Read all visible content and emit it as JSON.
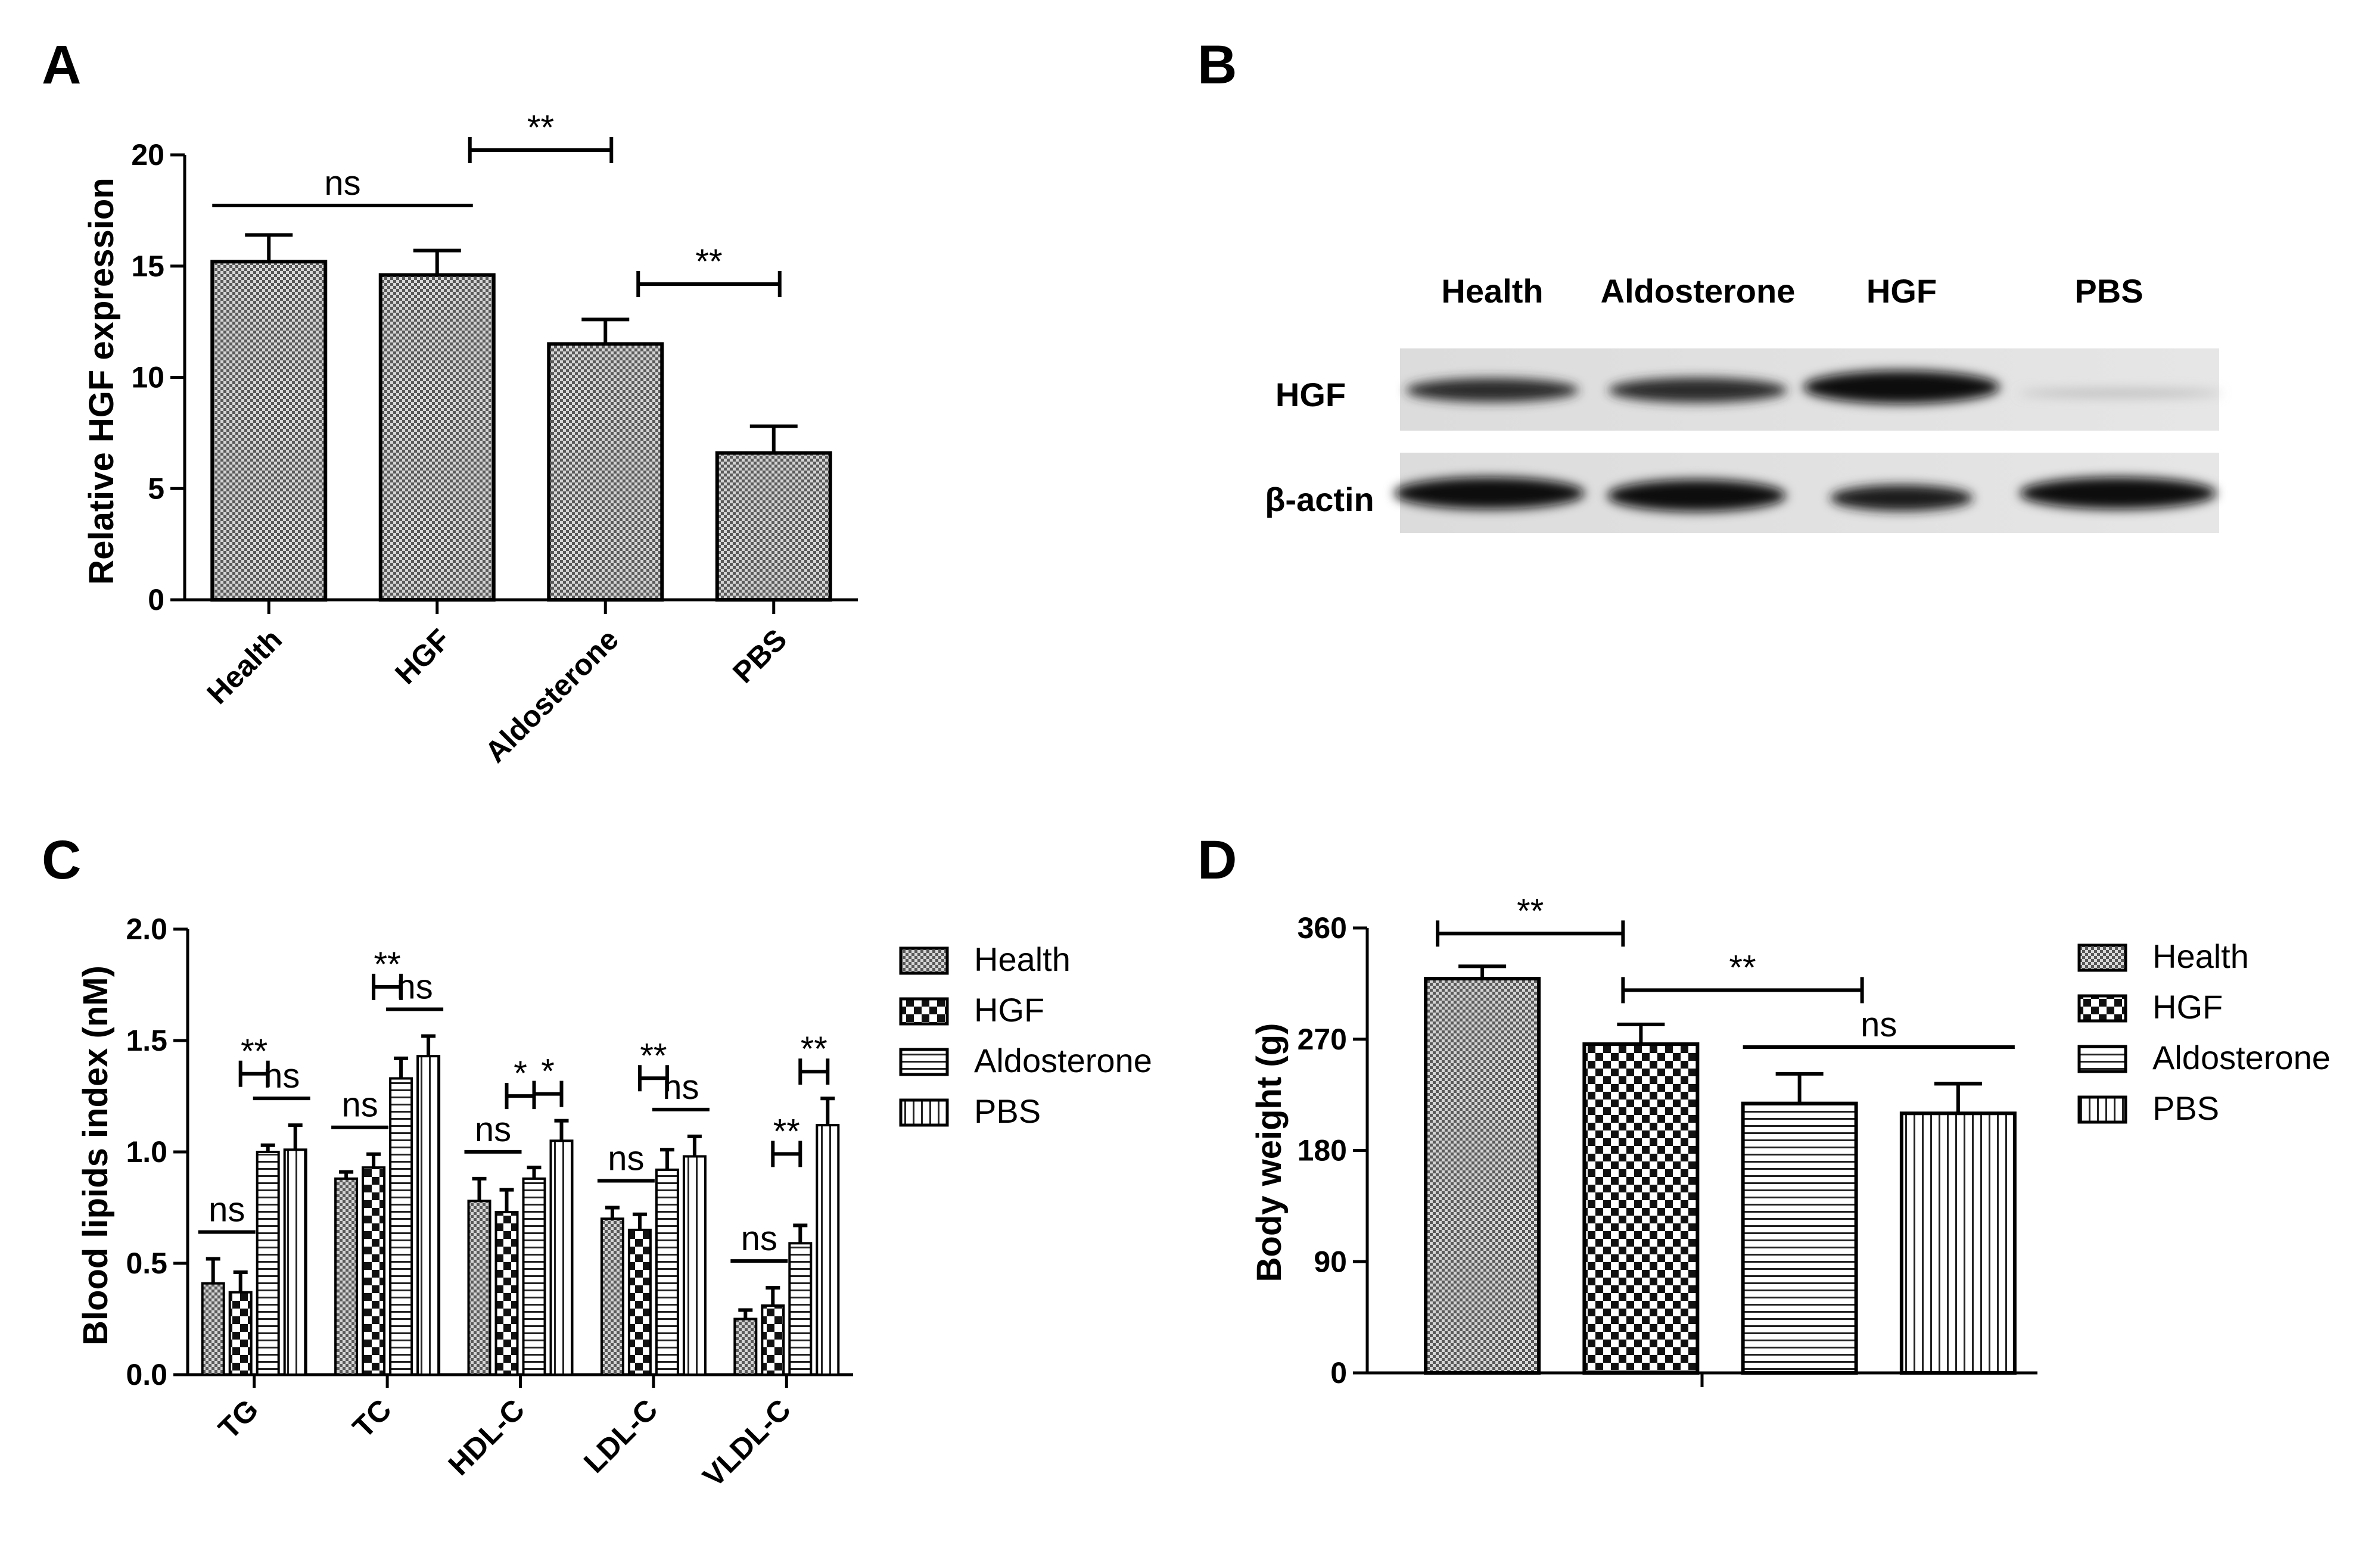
{
  "panels": {
    "A": {
      "letter": "A",
      "chart_data": {
        "type": "bar",
        "ylabel": "Relative HGF expression",
        "xlabel": "",
        "ylim": [
          0,
          20
        ],
        "yticks": [
          "0",
          "5",
          "10",
          "15",
          "20"
        ],
        "categories": [
          "Health",
          "HGF",
          "Aldosterone",
          "PBS"
        ],
        "values": [
          15.2,
          14.6,
          11.5,
          6.6
        ],
        "errors": [
          1.2,
          1.1,
          1.1,
          1.2
        ],
        "significance": [
          {
            "from": 0,
            "to": 1,
            "label": "ns"
          },
          {
            "from": 1,
            "to": 2,
            "label": "**"
          },
          {
            "from": 2,
            "to": 3,
            "label": "**"
          }
        ]
      }
    },
    "B": {
      "letter": "B",
      "lanes": [
        "Health",
        "Aldosterone",
        "HGF",
        "PBS"
      ],
      "rows": [
        "HGF",
        "β-actin"
      ]
    },
    "C": {
      "letter": "C",
      "chart_data": {
        "type": "bar",
        "ylabel": "Blood lipids index (nM)",
        "xlabel": "",
        "ylim": [
          0,
          2.0
        ],
        "yticks": [
          "0.0",
          "0.5",
          "1.0",
          "1.5",
          "2.0"
        ],
        "categories": [
          "TG",
          "TC",
          "HDL-C",
          "LDL-C",
          "VLDL-C"
        ],
        "series": [
          {
            "name": "Health",
            "values": [
              0.41,
              0.88,
              0.78,
              0.7,
              0.25
            ],
            "errors": [
              0.11,
              0.03,
              0.1,
              0.05,
              0.04
            ]
          },
          {
            "name": "HGF",
            "values": [
              0.37,
              0.93,
              0.73,
              0.65,
              0.31
            ],
            "errors": [
              0.09,
              0.06,
              0.1,
              0.07,
              0.08
            ]
          },
          {
            "name": "Aldosterone",
            "values": [
              1.0,
              1.33,
              0.88,
              0.92,
              0.59
            ],
            "errors": [
              0.03,
              0.09,
              0.05,
              0.09,
              0.08
            ]
          },
          {
            "name": "PBS",
            "values": [
              1.01,
              1.43,
              1.05,
              0.98,
              1.12
            ],
            "errors": [
              0.11,
              0.09,
              0.09,
              0.09,
              0.12
            ]
          }
        ],
        "significance": [
          {
            "category": 0,
            "from": 0,
            "to": 1,
            "label": "ns"
          },
          {
            "category": 0,
            "from": 1,
            "to": 2,
            "label": "**"
          },
          {
            "category": 0,
            "from": 2,
            "to": 3,
            "label": "ns"
          },
          {
            "category": 1,
            "from": 0,
            "to": 1,
            "label": "ns"
          },
          {
            "category": 1,
            "from": 1,
            "to": 2,
            "label": "**"
          },
          {
            "category": 1,
            "from": 2,
            "to": 3,
            "label": "ns"
          },
          {
            "category": 2,
            "from": 0,
            "to": 1,
            "label": "ns"
          },
          {
            "category": 2,
            "from": 1,
            "to": 2,
            "label": "*"
          },
          {
            "category": 2,
            "from": 2,
            "to": 3,
            "label": "*"
          },
          {
            "category": 3,
            "from": 0,
            "to": 1,
            "label": "ns"
          },
          {
            "category": 3,
            "from": 1,
            "to": 2,
            "label": "**"
          },
          {
            "category": 3,
            "from": 2,
            "to": 3,
            "label": "ns"
          },
          {
            "category": 4,
            "from": 0,
            "to": 1,
            "label": "ns"
          },
          {
            "category": 4,
            "from": 1,
            "to": 2,
            "label": "**"
          },
          {
            "category": 4,
            "from": 2,
            "to": 3,
            "label": "**"
          }
        ],
        "legend": [
          "Health",
          "HGF",
          "Aldosterone",
          "PBS"
        ],
        "legend_position": "right"
      }
    },
    "D": {
      "letter": "D",
      "chart_data": {
        "type": "bar",
        "ylabel": "Body weight (g)",
        "xlabel": "",
        "ylim": [
          0,
          360
        ],
        "yticks": [
          "0",
          "90",
          "180",
          "270",
          "360"
        ],
        "series": [
          {
            "name": "Health",
            "value": 319,
            "error": 10
          },
          {
            "name": "HGF",
            "value": 266,
            "error": 16
          },
          {
            "name": "Aldosterone",
            "value": 218,
            "error": 24
          },
          {
            "name": "PBS",
            "value": 210,
            "error": 24
          }
        ],
        "significance": [
          {
            "from": 0,
            "to": 1,
            "label": "**"
          },
          {
            "from": 1,
            "to": 2,
            "label": "**"
          },
          {
            "from": 2,
            "to": 3,
            "label": "ns"
          }
        ],
        "legend": [
          "Health",
          "HGF",
          "Aldosterone",
          "PBS"
        ],
        "legend_position": "right"
      }
    }
  }
}
